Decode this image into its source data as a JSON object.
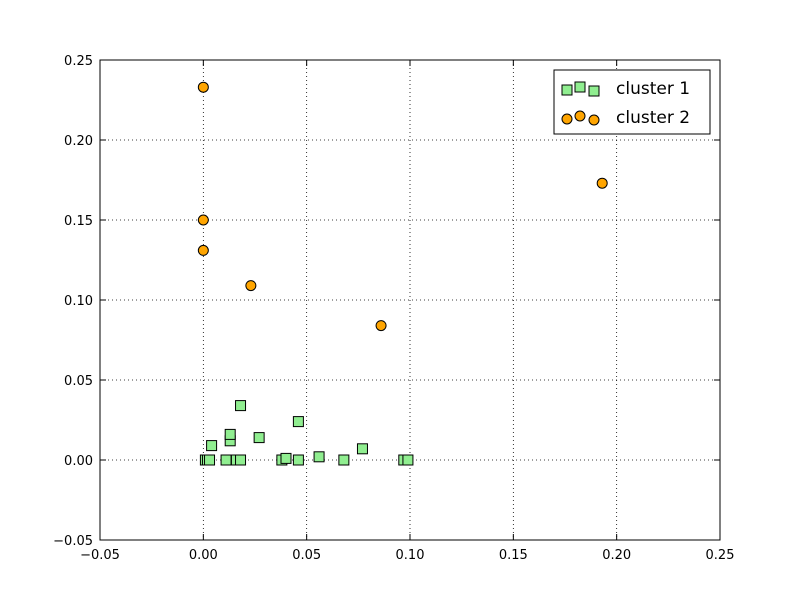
{
  "chart_data": {
    "type": "scatter",
    "xlim": [
      -0.05,
      0.25
    ],
    "ylim": [
      -0.05,
      0.25
    ],
    "x_ticks": [
      "−0.05",
      "0.00",
      "0.05",
      "0.10",
      "0.15",
      "0.20",
      "0.25"
    ],
    "y_ticks": [
      "−0.05",
      "0.00",
      "0.05",
      "0.10",
      "0.15",
      "0.20",
      "0.25"
    ],
    "grid": true,
    "legend_position": "top-right",
    "series": [
      {
        "name": "cluster 1",
        "marker": "square",
        "color": "#90ee90",
        "x": [
          0.001,
          0.002,
          0.003,
          0.004,
          0.011,
          0.013,
          0.013,
          0.016,
          0.018,
          0.018,
          0.027,
          0.038,
          0.04,
          0.046,
          0.046,
          0.056,
          0.068,
          0.077,
          0.097,
          0.099
        ],
        "y": [
          0.0,
          0.0,
          0.0,
          0.009,
          0.0,
          0.012,
          0.016,
          0.0,
          0.034,
          0.0,
          0.014,
          0.0,
          0.001,
          0.024,
          0.0,
          0.002,
          0.0,
          0.007,
          0.0,
          0.0
        ]
      },
      {
        "name": "cluster 2",
        "marker": "circle",
        "color": "#ffa500",
        "x": [
          0.0,
          0.0,
          0.0,
          0.023,
          0.086,
          0.193
        ],
        "y": [
          0.233,
          0.15,
          0.131,
          0.109,
          0.084,
          0.173
        ]
      }
    ]
  }
}
